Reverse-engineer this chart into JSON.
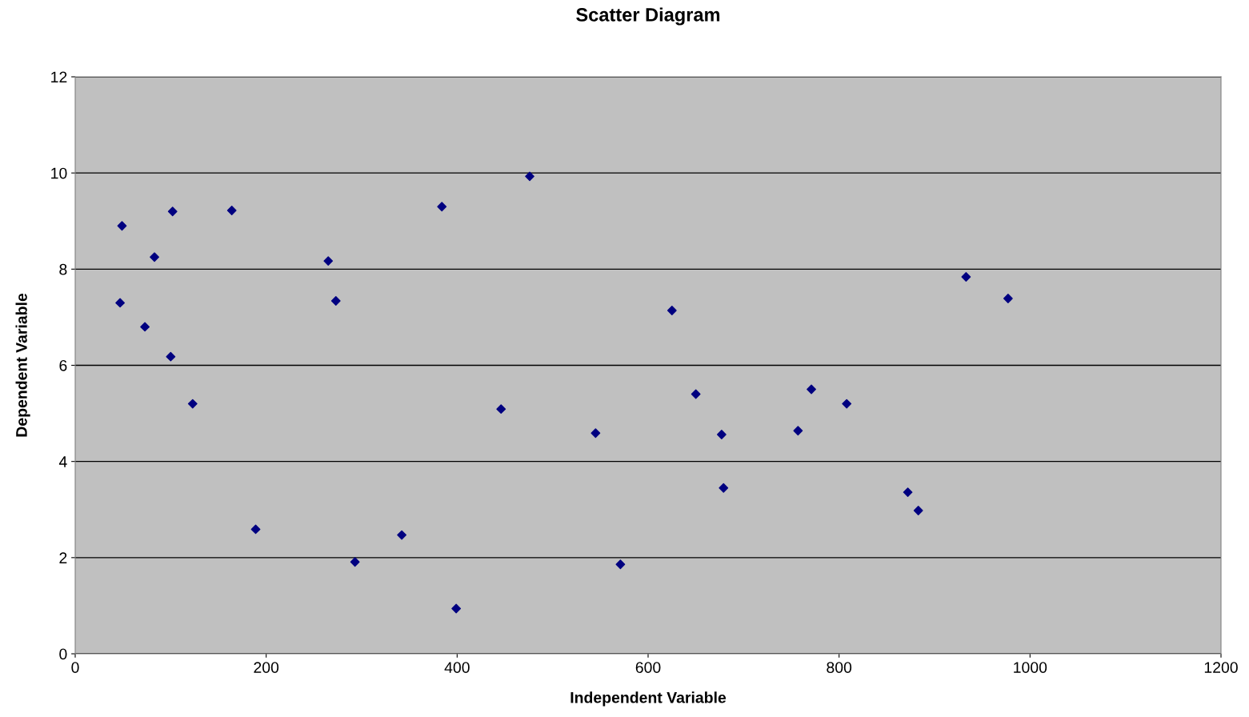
{
  "chart_data": {
    "type": "scatter",
    "title": "Scatter Diagram",
    "xlabel": "Independent Variable",
    "ylabel": "Dependent Variable",
    "x": [
      49,
      47,
      73,
      83,
      100,
      102,
      123,
      164,
      189,
      265,
      273,
      293,
      342,
      384,
      399,
      446,
      476,
      545,
      571,
      625,
      650,
      677,
      679,
      757,
      771,
      808,
      872,
      883,
      933,
      977
    ],
    "series": [
      {
        "color": "#000080",
        "values": [
          8.9,
          7.3,
          6.8,
          8.25,
          6.18,
          9.2,
          5.2,
          9.22,
          2.59,
          8.17,
          7.34,
          1.91,
          2.47,
          9.3,
          0.94,
          5.09,
          9.93,
          4.59,
          1.86,
          7.14,
          5.4,
          4.56,
          3.45,
          4.64,
          5.5,
          5.2,
          3.36,
          2.98,
          7.84,
          7.39
        ]
      }
    ],
    "xlim": [
      0,
      1200
    ],
    "xticks": [
      0,
      200,
      400,
      600,
      800,
      1000,
      1200
    ],
    "ylim": [
      0,
      12
    ],
    "yticks": [
      0,
      2,
      4,
      6,
      8,
      10,
      12
    ],
    "grid": "y",
    "marker": "diamond",
    "legend": false
  }
}
